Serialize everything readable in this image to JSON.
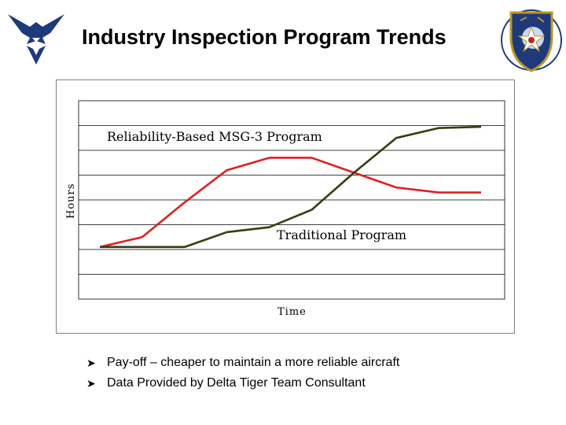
{
  "slide": {
    "title": "Industry Inspection Program Trends"
  },
  "colors": {
    "reliability_line": "#e02020",
    "traditional_line": "#3a3a10",
    "grid": "#000000"
  },
  "chart_data": {
    "type": "line",
    "title": "",
    "xlabel": "Time",
    "ylabel": "Hours",
    "grid": true,
    "x": [
      0,
      1,
      2,
      3,
      4,
      5,
      6,
      7,
      8,
      9
    ],
    "xlim": [
      0,
      9
    ],
    "ylim": [
      0,
      8
    ],
    "series": [
      {
        "name": "Reliability-Based MSG-3 Program",
        "values": [
          2.1,
          2.5,
          3.9,
          5.2,
          5.7,
          5.7,
          5.1,
          4.5,
          4.3,
          4.3
        ],
        "x": [
          0,
          1,
          2,
          3,
          4,
          5,
          6,
          7,
          8,
          9
        ]
      },
      {
        "name": "Traditional Program",
        "values": [
          2.1,
          2.1,
          2.1,
          2.7,
          2.9,
          3.6,
          5.1,
          6.5,
          6.9,
          6.95
        ],
        "x": [
          0,
          1,
          2,
          3,
          4,
          5,
          6,
          7,
          8,
          9
        ]
      }
    ],
    "annotations": [
      {
        "text": "Reliability-Based MSG-3 Program"
      },
      {
        "text": "Traditional Program"
      }
    ]
  },
  "bullets": [
    "Pay-off – cheaper to maintain a more reliable aircraft",
    "Data Provided by Delta Tiger Team Consultant"
  ]
}
